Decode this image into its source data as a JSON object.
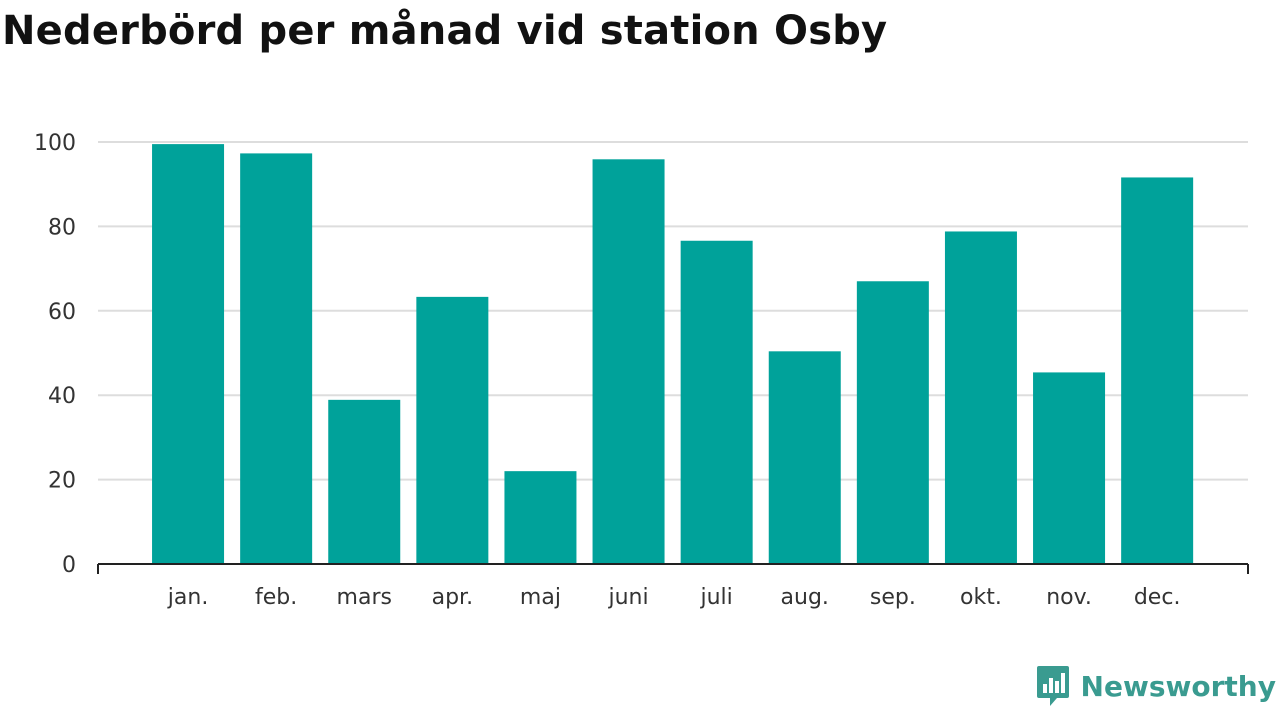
{
  "title": "Nederbörd per månad vid station Osby",
  "brand": {
    "name": "Newsworthy",
    "icon": "newsworthy-logo-icon"
  },
  "colors": {
    "bar": "#00a29a",
    "grid": "#dddddd",
    "axis": "#222222",
    "text": "#333333",
    "brand": "#3a9b90"
  },
  "chart_data": {
    "type": "bar",
    "title": "Nederbörd per månad vid station Osby",
    "xlabel": "",
    "ylabel": "",
    "categories": [
      "jan.",
      "feb.",
      "mars",
      "apr.",
      "maj",
      "juni",
      "juli",
      "aug.",
      "sep.",
      "okt.",
      "nov.",
      "dec."
    ],
    "values": [
      99.5,
      97.3,
      38.9,
      63.3,
      22.0,
      95.9,
      76.6,
      50.4,
      67.0,
      78.8,
      45.4,
      91.6
    ],
    "ylim": [
      0,
      100
    ],
    "yticks": [
      0,
      20,
      40,
      60,
      80,
      100
    ],
    "grid": true,
    "legend": "none"
  }
}
